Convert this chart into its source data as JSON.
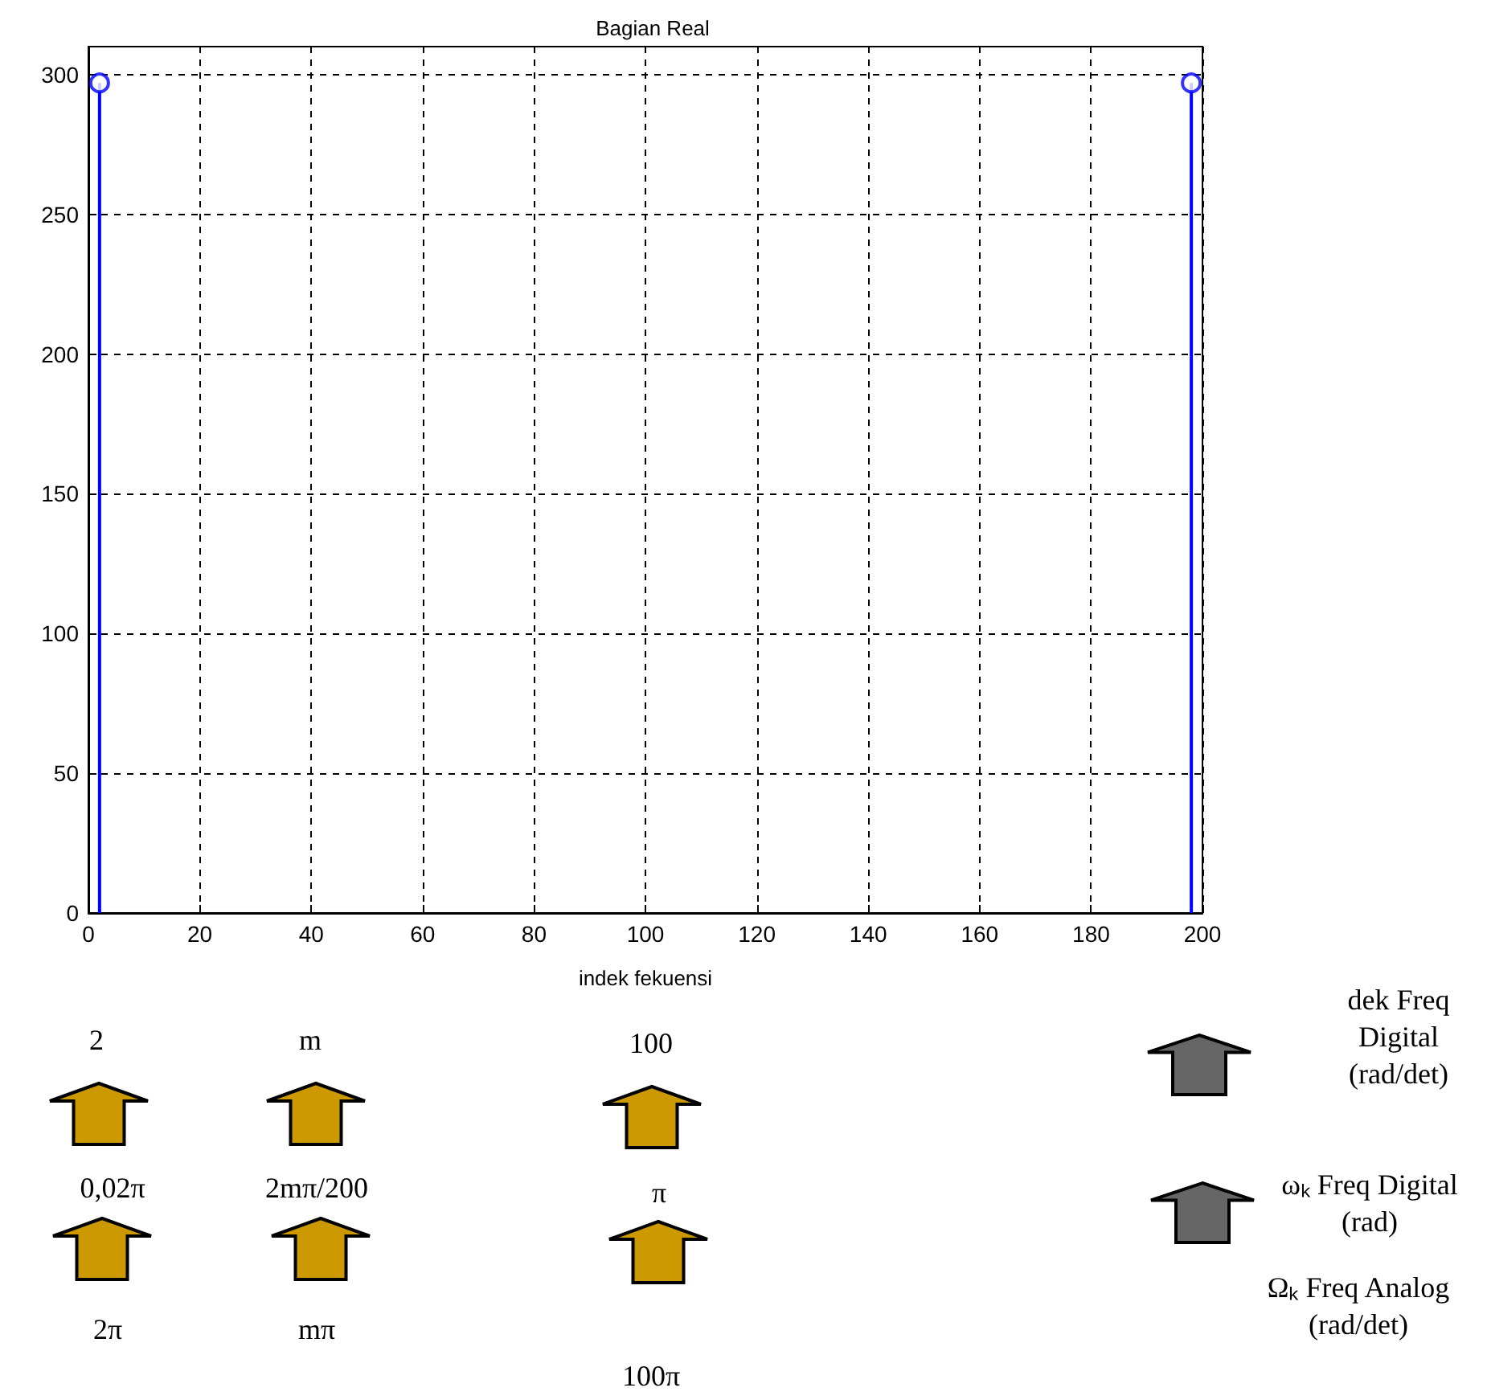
{
  "chart_data": {
    "type": "lollipop",
    "title": "Bagian Real",
    "xlabel": "indek fekuensi",
    "x": [
      2,
      198
    ],
    "values": [
      297,
      297
    ],
    "color": "#0000ff",
    "marker": "circle",
    "xlim": [
      0,
      200
    ],
    "xticks": [
      0,
      20,
      40,
      60,
      80,
      100,
      120,
      140,
      160,
      180,
      200
    ],
    "ylim": [
      0,
      310
    ],
    "yticks": [
      0,
      50,
      100,
      150,
      200,
      250,
      300
    ],
    "grid": true,
    "annotations": [
      "2",
      "m",
      "100",
      "0,02π",
      "2mπ/200",
      "π",
      "2π",
      "mπ",
      "100π",
      "dek Freq Digital (rad/det)",
      "ωₖ Freq Digital (rad)",
      "Ωₖ Freq Analog (rad/det)"
    ]
  }
}
